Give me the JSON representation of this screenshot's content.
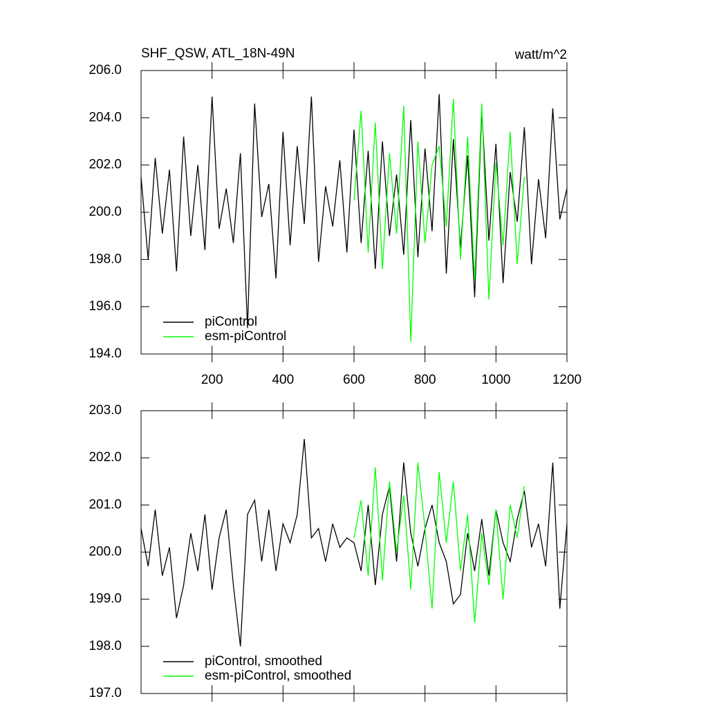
{
  "chart_data": [
    {
      "type": "line",
      "title": "SHF_QSW, ATL_18N-49N",
      "units": "watt/m^2",
      "x": [
        0,
        20,
        40,
        60,
        80,
        100,
        120,
        140,
        160,
        180,
        200,
        220,
        240,
        260,
        280,
        300,
        320,
        340,
        360,
        380,
        400,
        420,
        440,
        460,
        480,
        500,
        520,
        540,
        560,
        580,
        600,
        620,
        640,
        660,
        680,
        700,
        720,
        740,
        760,
        780,
        800,
        820,
        840,
        860,
        880,
        900,
        920,
        940,
        960,
        980,
        1000,
        1020,
        1040,
        1060,
        1080,
        1100,
        1120,
        1140,
        1160,
        1180,
        1200
      ],
      "series": [
        {
          "name": "piControl",
          "color": "#000000",
          "values": [
            201.5,
            198.0,
            202.3,
            199.1,
            201.8,
            197.5,
            203.2,
            199.0,
            202.0,
            198.4,
            204.9,
            199.3,
            201.0,
            198.7,
            202.5,
            195.1,
            204.6,
            199.8,
            201.2,
            197.2,
            203.4,
            198.6,
            202.8,
            199.5,
            204.9,
            197.9,
            201.1,
            199.4,
            202.2,
            198.3,
            203.5,
            198.7,
            202.6,
            197.6,
            203.0,
            199.0,
            201.6,
            198.2,
            203.9,
            198.1,
            202.7,
            199.2,
            205.0,
            197.4,
            203.1,
            198.5,
            202.4,
            196.4,
            204.3,
            198.8,
            202.9,
            197.0,
            201.7,
            199.6,
            203.6,
            197.8,
            201.4,
            198.9,
            204.4,
            199.7,
            201.0
          ]
        },
        {
          "name": "esm-piControl",
          "color": "#00ff00",
          "values": [
            null,
            null,
            null,
            null,
            null,
            null,
            null,
            null,
            null,
            null,
            null,
            null,
            null,
            null,
            null,
            null,
            null,
            null,
            null,
            null,
            null,
            null,
            null,
            null,
            null,
            null,
            null,
            null,
            null,
            null,
            200.5,
            204.3,
            198.3,
            203.8,
            197.6,
            202.5,
            199.1,
            204.5,
            194.5,
            203.0,
            198.7,
            202.0,
            202.8,
            199.4,
            204.8,
            198.0,
            203.2,
            197.1,
            204.6,
            196.3,
            202.1,
            198.6,
            203.4,
            197.8,
            201.5,
            null,
            null,
            null,
            null,
            null,
            null
          ]
        }
      ],
      "xlim": [
        0,
        1200
      ],
      "xticks": [
        200,
        400,
        600,
        800,
        1000,
        1200
      ],
      "ylim": [
        194,
        206
      ],
      "yticks": [
        {
          "value": 194,
          "label": "194.0"
        },
        {
          "value": 196,
          "label": "196.0"
        },
        {
          "value": 198,
          "label": "198.0"
        },
        {
          "value": 200,
          "label": "200.0"
        },
        {
          "value": 202,
          "label": "202.0"
        },
        {
          "value": 204,
          "label": "204.0"
        },
        {
          "value": 206,
          "label": "206.0"
        }
      ],
      "legend": "lower left"
    },
    {
      "type": "line",
      "x": [
        0,
        20,
        40,
        60,
        80,
        100,
        120,
        140,
        160,
        180,
        200,
        220,
        240,
        260,
        280,
        300,
        320,
        340,
        360,
        380,
        400,
        420,
        440,
        460,
        480,
        500,
        520,
        540,
        560,
        580,
        600,
        620,
        640,
        660,
        680,
        700,
        720,
        740,
        760,
        780,
        800,
        820,
        840,
        860,
        880,
        900,
        920,
        940,
        960,
        980,
        1000,
        1020,
        1040,
        1060,
        1080,
        1100,
        1120,
        1140,
        1160,
        1180,
        1200
      ],
      "series": [
        {
          "name": "piControl, smoothed",
          "color": "#000000",
          "values": [
            200.5,
            199.7,
            200.9,
            199.5,
            200.1,
            198.6,
            199.3,
            200.4,
            199.6,
            200.8,
            199.2,
            200.3,
            200.9,
            199.3,
            198.0,
            200.8,
            201.1,
            199.8,
            200.9,
            199.6,
            200.6,
            200.2,
            200.8,
            202.4,
            200.3,
            200.5,
            199.8,
            200.6,
            200.1,
            200.3,
            200.2,
            199.6,
            201.0,
            199.3,
            200.8,
            201.4,
            199.8,
            201.9,
            200.4,
            199.7,
            200.5,
            201.0,
            200.2,
            199.8,
            198.9,
            199.1,
            200.4,
            199.6,
            200.7,
            199.5,
            200.9,
            200.2,
            199.8,
            200.7,
            201.3,
            200.1,
            200.6,
            199.7,
            201.9,
            198.8,
            200.6
          ]
        },
        {
          "name": "esm-piControl, smoothed",
          "color": "#00ff00",
          "values": [
            null,
            null,
            null,
            null,
            null,
            null,
            null,
            null,
            null,
            null,
            null,
            null,
            null,
            null,
            null,
            null,
            null,
            null,
            null,
            null,
            null,
            null,
            null,
            null,
            null,
            null,
            null,
            null,
            null,
            null,
            200.3,
            201.1,
            199.5,
            201.8,
            199.4,
            201.5,
            200.0,
            201.2,
            199.2,
            201.9,
            200.5,
            198.8,
            201.7,
            200.2,
            201.5,
            199.6,
            200.8,
            198.5,
            200.4,
            199.3,
            200.9,
            199.0,
            201.0,
            200.3,
            201.4,
            null,
            null,
            null,
            null,
            null,
            null
          ]
        }
      ],
      "xlim": [
        0,
        1200
      ],
      "xticks": [
        200,
        400,
        600,
        800,
        1000,
        1200
      ],
      "ylim": [
        197,
        203
      ],
      "yticks": [
        {
          "value": 197,
          "label": "197.0"
        },
        {
          "value": 198,
          "label": "198.0"
        },
        {
          "value": 199,
          "label": "199.0"
        },
        {
          "value": 200,
          "label": "200.0"
        },
        {
          "value": 201,
          "label": "201.0"
        },
        {
          "value": 202,
          "label": "202.0"
        },
        {
          "value": 203,
          "label": "203.0"
        }
      ],
      "legend": "lower left"
    }
  ]
}
